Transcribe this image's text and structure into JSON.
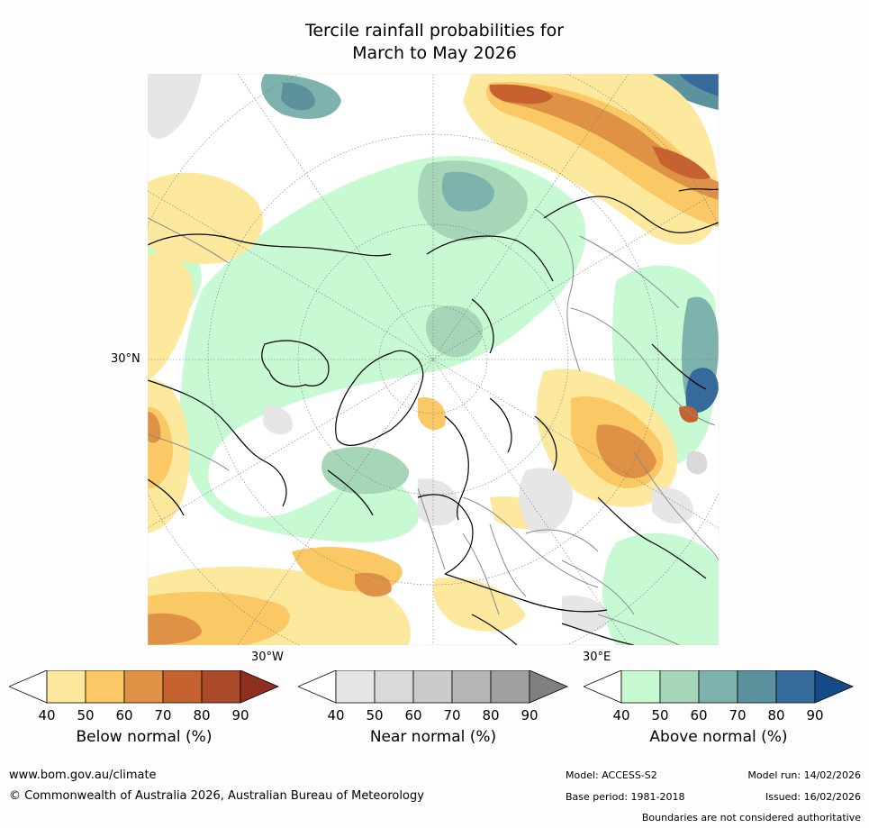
{
  "title": {
    "line1": "Tercile rainfall probabilities for",
    "line2": "March to May 2026"
  },
  "map": {
    "labels": {
      "lat30n": "30°N",
      "lon30w": "30°W",
      "lon30e": "30°E"
    },
    "colors": {
      "ocean_base": "#ffffff",
      "coastline": "#000000",
      "borders": "#8a8a8a"
    }
  },
  "colorbars": [
    {
      "name": "Below normal (%)",
      "ticks": [
        "40",
        "50",
        "60",
        "70",
        "80",
        "90"
      ],
      "colors": [
        "#ffffff",
        "#fde99d",
        "#fbc866",
        "#df9245",
        "#c5622f",
        "#ab4a29",
        "#8e2f1f"
      ]
    },
    {
      "name": "Near normal (%)",
      "ticks": [
        "40",
        "50",
        "60",
        "70",
        "80",
        "90"
      ],
      "colors": [
        "#ffffff",
        "#e6e6e6",
        "#d9d9d9",
        "#cbcbcb",
        "#b7b7b7",
        "#a0a0a0",
        "#808080"
      ]
    },
    {
      "name": "Above normal (%)",
      "ticks": [
        "40",
        "50",
        "60",
        "70",
        "80",
        "90"
      ],
      "colors": [
        "#ffffff",
        "#c7fad2",
        "#a6d6b8",
        "#7eb3ad",
        "#5c929d",
        "#356a9a",
        "#144a86"
      ]
    }
  ],
  "footer": {
    "website": "www.bom.gov.au/climate",
    "copyright": "© Commonwealth of Australia 2026, Australian Bureau of Meteorology",
    "model": "Model: ACCESS-S2",
    "model_run": "Model run: 14/02/2026",
    "base_period": "Base period: 1981-2018",
    "issued": "Issued: 16/02/2026",
    "disclaimer": "Boundaries are not considered authoritative"
  }
}
